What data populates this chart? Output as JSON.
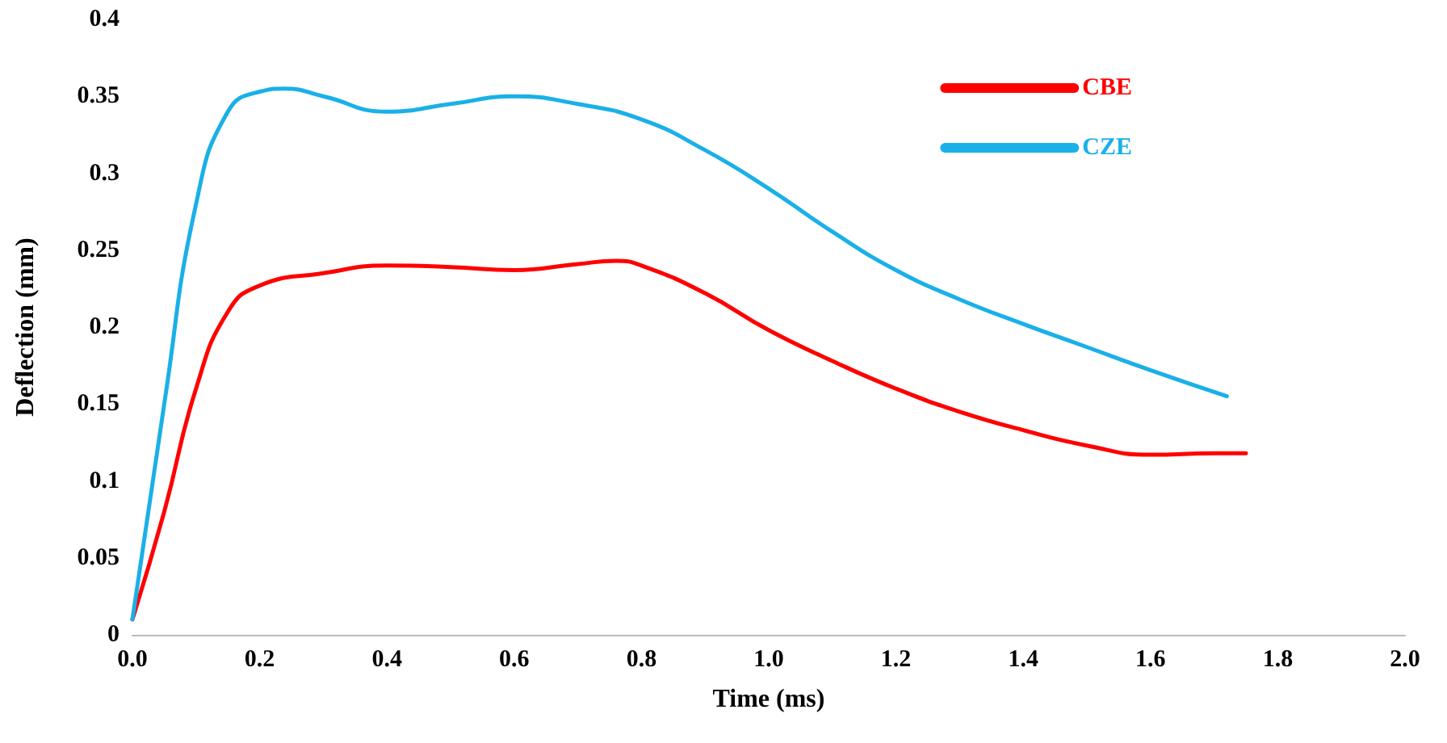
{
  "chart_data": {
    "type": "line",
    "xlabel": "Time (ms)",
    "ylabel": "Deflection (mm)",
    "xlim": [
      0,
      2
    ],
    "xticks": [
      {
        "value": 0,
        "label": "0.0"
      },
      {
        "value": 0.2,
        "label": "0.2"
      },
      {
        "value": 0.4,
        "label": "0.4"
      },
      {
        "value": 0.6,
        "label": "0.6"
      },
      {
        "value": 0.8,
        "label": "0.8"
      },
      {
        "value": 1,
        "label": "1.0"
      },
      {
        "value": 1.2,
        "label": "1.2"
      },
      {
        "value": 1.4,
        "label": "1.4"
      },
      {
        "value": 1.6,
        "label": "1.6"
      },
      {
        "value": 1.8,
        "label": "1.8"
      },
      {
        "value": 2,
        "label": "2.0"
      }
    ],
    "ylim": [
      0,
      0.4
    ],
    "yticks": [
      0,
      0.05,
      0.1,
      0.15,
      0.2,
      0.25,
      0.3,
      0.35,
      0.4
    ],
    "grid": false,
    "legend": "top right",
    "marker": "none",
    "line_style": "solid",
    "series": [
      {
        "name": "CBE",
        "color": "#ff0000",
        "x": [
          0,
          0.05,
          0.1,
          0.15,
          0.2,
          0.3,
          0.4,
          0.5,
          0.6,
          0.7,
          0.76,
          0.8,
          0.9,
          1.0,
          1.1,
          1.2,
          1.3,
          1.4,
          1.5,
          1.6,
          1.7,
          1.75
        ],
        "values": [
          0.01,
          0.08,
          0.16,
          0.21,
          0.227,
          0.235,
          0.24,
          0.239,
          0.237,
          0.241,
          0.243,
          0.24,
          0.222,
          0.198,
          0.178,
          0.16,
          0.145,
          0.133,
          0.123,
          0.117,
          0.118,
          0.118
        ]
      },
      {
        "name": "CZE",
        "color": "#1ab0e8",
        "x": [
          0,
          0.05,
          0.1,
          0.15,
          0.2,
          0.24,
          0.3,
          0.4,
          0.5,
          0.6,
          0.7,
          0.8,
          0.9,
          1.0,
          1.1,
          1.2,
          1.3,
          1.4,
          1.5,
          1.6,
          1.72
        ],
        "values": [
          0.01,
          0.15,
          0.28,
          0.34,
          0.353,
          0.355,
          0.35,
          0.34,
          0.345,
          0.35,
          0.345,
          0.335,
          0.315,
          0.29,
          0.262,
          0.237,
          0.218,
          0.202,
          0.187,
          0.172,
          0.155
        ]
      }
    ]
  }
}
